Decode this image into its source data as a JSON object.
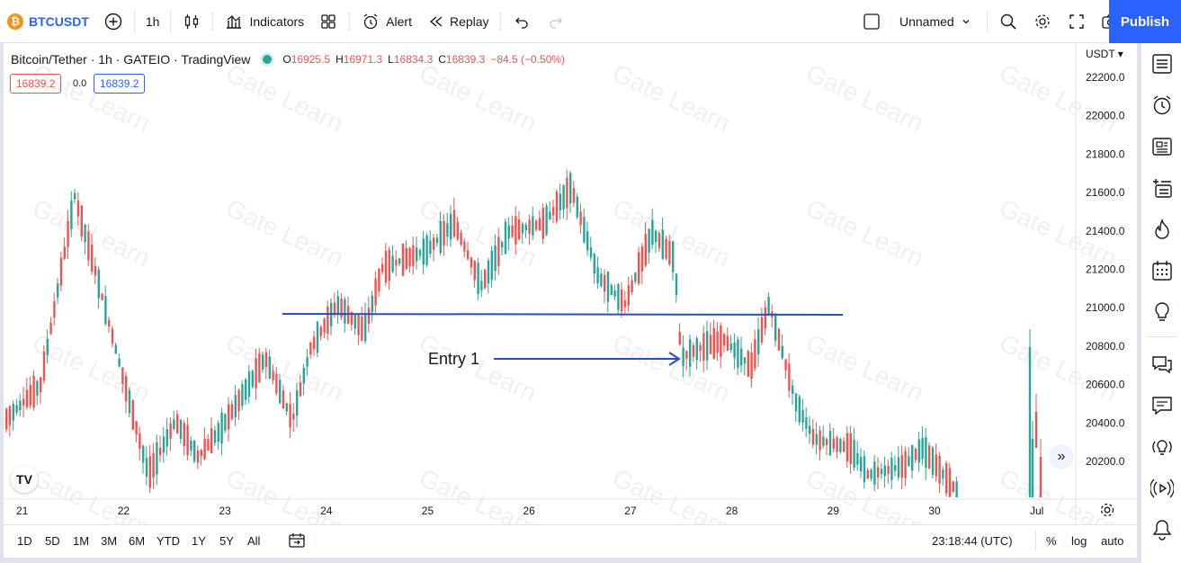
{
  "toolbar": {
    "symbol": "BTCUSDT",
    "symbol_logo": "₿",
    "interval": "1h",
    "indicators_label": "Indicators",
    "alert_label": "Alert",
    "replay_label": "Replay",
    "layout_name": "Unnamed",
    "publish_label": "Publish"
  },
  "legend": {
    "title": "Bitcoin/Tether · 1h · GATEIO · TradingView",
    "open_label": "O",
    "open": "16925.5",
    "high_label": "H",
    "high": "16971.3",
    "low_label": "L",
    "low": "16834.3",
    "close_label": "C",
    "close": "16839.3",
    "change": "−84.5 (−0.50%)",
    "bid": "16839.2",
    "spread": "0.0",
    "ask": "16839.2"
  },
  "price_axis": {
    "currency": "USDT",
    "ticks": [
      "22200.0",
      "22000.0",
      "21800.0",
      "21600.0",
      "21400.0",
      "21200.0",
      "21000.0",
      "20800.0",
      "20600.0",
      "20400.0",
      "20200.0"
    ]
  },
  "time_axis": {
    "ticks": [
      "21",
      "22",
      "23",
      "24",
      "25",
      "26",
      "27",
      "28",
      "29",
      "30",
      "Jul"
    ]
  },
  "annotation": {
    "entry_label": "Entry 1"
  },
  "watermark": "Gate Learn",
  "tv_logo": "TV",
  "bottombar": {
    "ranges": [
      "1D",
      "5D",
      "1M",
      "3M",
      "6M",
      "YTD",
      "1Y",
      "5Y",
      "All"
    ],
    "clock": "23:18:44 (UTC)",
    "percent_label": "%",
    "log_label": "log",
    "auto_label": "auto"
  },
  "colors": {
    "up": "#26a69a",
    "down": "#ef5350",
    "accent": "#2962ff",
    "line": "#2a4cc7"
  },
  "icons": {
    "right_toolbar": [
      "watchlist-icon",
      "alarm-clock-icon",
      "news-icon",
      "add-list-icon",
      "hotlist-icon",
      "calendar-icon",
      "ideas-icon",
      "chat-icon",
      "messages-icon",
      "idea-stream-icon",
      "streams-icon",
      "notifications-icon"
    ]
  }
}
